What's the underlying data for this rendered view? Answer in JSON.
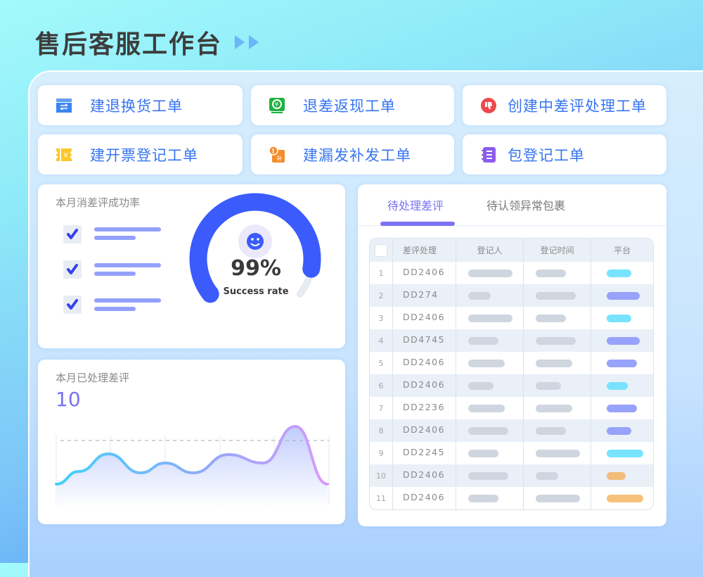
{
  "title": "售后客服工作台",
  "actions": [
    {
      "label": "建退换货工单",
      "icon": "return-exchange-box-icon",
      "color": "#3a85f4"
    },
    {
      "label": "退差返现工单",
      "icon": "cashback-icon",
      "color": "#1db23f"
    },
    {
      "label": "创建中差评处理工单",
      "icon": "thumbs-down-icon",
      "color": "#f0484d"
    },
    {
      "label": "建开票登记工单",
      "icon": "invoice-ticket-icon",
      "color": "#fbc72a"
    },
    {
      "label": "建漏发补发工单",
      "icon": "missing-shipment-icon",
      "color": "#f58d2b"
    },
    {
      "label": "包登记工单",
      "icon": "notebook-icon",
      "color": "#8b5cf0"
    }
  ],
  "success_card": {
    "title": "本月消差评成功率",
    "value": "99%",
    "percent": 99,
    "caption": "Success rate",
    "accent": "#3b5bfd"
  },
  "processed_card": {
    "title": "本月已处理差评",
    "count": "10",
    "accent": "#7a72f2"
  },
  "chart_data": {
    "type": "area",
    "values": [
      32,
      50,
      75,
      48,
      62,
      48,
      74,
      62,
      114,
      32
    ],
    "reference_line": 94,
    "grid": "vertical"
  },
  "tabs": [
    {
      "label": "待处理差评",
      "active": true
    },
    {
      "label": "待认领异常包裹",
      "active": false
    }
  ],
  "table": {
    "columns": [
      "差评处理",
      "登记人",
      "登记时间",
      "平台"
    ],
    "rows": [
      {
        "n": "1",
        "code": "DD2406",
        "platform": "#78e3fc"
      },
      {
        "n": "2",
        "code": "DD274",
        "platform": "#97a2fb"
      },
      {
        "n": "3",
        "code": "DD2406",
        "platform": "#78e3fc"
      },
      {
        "n": "4",
        "code": "DD4745",
        "platform": "#97a2fb"
      },
      {
        "n": "5",
        "code": "DD2406",
        "platform": "#97a2fb"
      },
      {
        "n": "6",
        "code": "DD2406",
        "platform": "#78e3fc"
      },
      {
        "n": "7",
        "code": "DD2236",
        "platform": "#97a2fb"
      },
      {
        "n": "8",
        "code": "DD2406",
        "platform": "#97a2fb"
      },
      {
        "n": "9",
        "code": "DD2245",
        "platform": "#78e3fc"
      },
      {
        "n": "10",
        "code": "DD2406",
        "platform": "#f2bd78"
      },
      {
        "n": "11",
        "code": "DD2406",
        "platform": "#f7c17a"
      }
    ]
  }
}
